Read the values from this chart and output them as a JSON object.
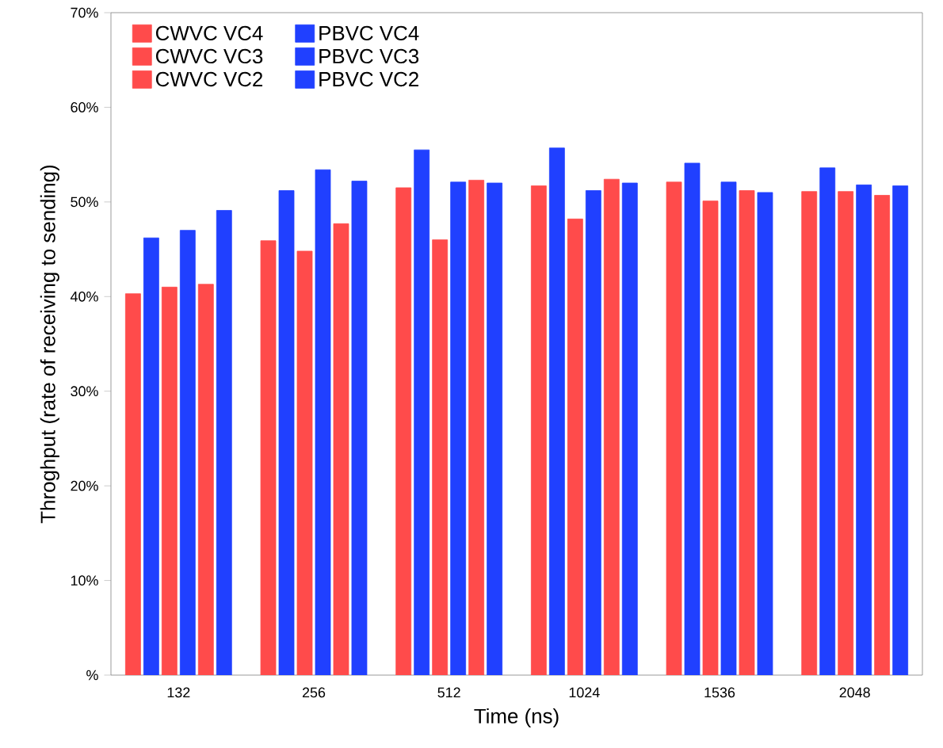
{
  "chart_data": {
    "type": "bar",
    "xlabel": "Time (ns)",
    "ylabel": "Throghput (rate of receiving to sending)",
    "categories": [
      "132",
      "256",
      "512",
      "1024",
      "1536",
      "2048"
    ],
    "series": [
      {
        "name": "CWVC VC4",
        "color": "#ff4b4b",
        "values": [
          40.3,
          45.9,
          51.5,
          51.7,
          52.1,
          51.1
        ]
      },
      {
        "name": "PBVC VC4",
        "color": "#2040ff",
        "values": [
          46.2,
          51.2,
          55.5,
          55.7,
          54.1,
          53.6
        ]
      },
      {
        "name": "CWVC VC3",
        "color": "#ff4b4b",
        "values": [
          41,
          44.8,
          46,
          48.2,
          50.1,
          51.1
        ]
      },
      {
        "name": "PBVC VC3",
        "color": "#2040ff",
        "values": [
          47,
          53.4,
          52.1,
          51.2,
          52.1,
          51.8
        ]
      },
      {
        "name": "CWVC VC2",
        "color": "#ff4b4b",
        "values": [
          41.3,
          47.7,
          52.3,
          52.4,
          51.2,
          50.7
        ]
      },
      {
        "name": "PBVC VC2",
        "color": "#2040ff",
        "values": [
          49.1,
          52.2,
          52,
          52,
          51,
          51.7
        ]
      }
    ],
    "ylim": [
      0,
      70
    ],
    "yticks": [
      {
        "value": 0,
        "label": "%"
      },
      {
        "value": 10,
        "label": "10%"
      },
      {
        "value": 20,
        "label": "20%"
      },
      {
        "value": 30,
        "label": "30%"
      },
      {
        "value": 40,
        "label": "40%"
      },
      {
        "value": 50,
        "label": "50%"
      },
      {
        "value": 60,
        "label": "60%"
      },
      {
        "value": 70,
        "label": "70%"
      }
    ],
    "legend": "top left"
  }
}
